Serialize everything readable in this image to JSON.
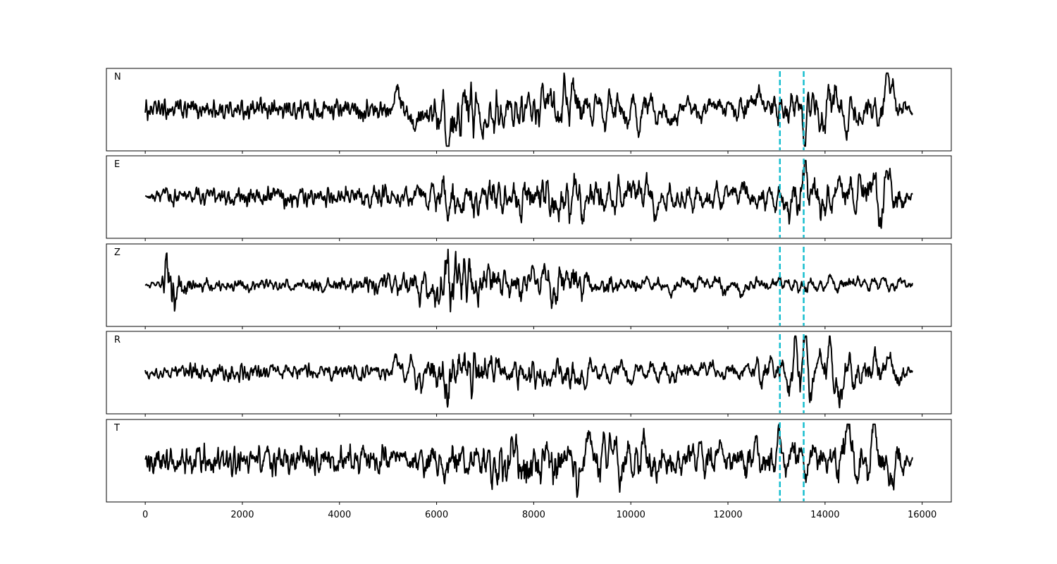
{
  "chart_data": {
    "type": "line",
    "title": "",
    "xlabel": "",
    "ylabel": "",
    "xlim": [
      -800,
      16600
    ],
    "x_ticks": [
      0,
      2000,
      4000,
      6000,
      8000,
      10000,
      12000,
      14000,
      16000
    ],
    "x_tick_labels": [
      "0",
      "2000",
      "4000",
      "6000",
      "8000",
      "10000",
      "12000",
      "14000",
      "16000"
    ],
    "x_range": [
      0,
      15800
    ],
    "grid": false,
    "trace_color": "#000000",
    "pick_color": "#17becf",
    "picks": [
      13070,
      13560
    ],
    "panels": [
      {
        "label": "N",
        "envelope": [
          [
            0,
            0.16
          ],
          [
            1000,
            0.18
          ],
          [
            2000,
            0.16
          ],
          [
            3000,
            0.18
          ],
          [
            4000,
            0.16
          ],
          [
            5000,
            0.18
          ],
          [
            5200,
            0.35
          ],
          [
            6000,
            0.4
          ],
          [
            6200,
            0.7
          ],
          [
            7000,
            0.45
          ],
          [
            8000,
            0.4
          ],
          [
            9000,
            0.5
          ],
          [
            10000,
            0.42
          ],
          [
            11000,
            0.4
          ],
          [
            12000,
            0.35
          ],
          [
            13000,
            0.45
          ],
          [
            13400,
            0.65
          ],
          [
            13800,
            0.6
          ],
          [
            14200,
            0.6
          ],
          [
            15000,
            0.45
          ],
          [
            15400,
            0.55
          ],
          [
            15800,
            0.2
          ]
        ],
        "spikes": [
          [
            6220,
            -0.92
          ],
          [
            5180,
            0.55
          ],
          [
            13380,
            0.72
          ],
          [
            14080,
            0.7
          ],
          [
            15300,
            0.68
          ],
          [
            10150,
            -0.62
          ],
          [
            8650,
            0.55
          ],
          [
            13550,
            -0.62
          ],
          [
            14650,
            -0.55
          ]
        ]
      },
      {
        "label": "E",
        "envelope": [
          [
            0,
            0.05
          ],
          [
            500,
            0.16
          ],
          [
            1000,
            0.14
          ],
          [
            2000,
            0.18
          ],
          [
            3000,
            0.16
          ],
          [
            4000,
            0.14
          ],
          [
            5000,
            0.2
          ],
          [
            6000,
            0.35
          ],
          [
            6200,
            0.55
          ],
          [
            7000,
            0.45
          ],
          [
            8000,
            0.45
          ],
          [
            9000,
            0.55
          ],
          [
            10000,
            0.52
          ],
          [
            11000,
            0.45
          ],
          [
            12000,
            0.38
          ],
          [
            13000,
            0.42
          ],
          [
            13600,
            0.72
          ],
          [
            14200,
            0.55
          ],
          [
            15000,
            0.6
          ],
          [
            15300,
            0.65
          ],
          [
            15800,
            0.25
          ]
        ],
        "spikes": [
          [
            13600,
            0.82
          ],
          [
            15150,
            -0.85
          ],
          [
            15000,
            0.68
          ],
          [
            10500,
            -0.7
          ],
          [
            6220,
            -0.6
          ],
          [
            9000,
            -0.52
          ],
          [
            15300,
            0.75
          ]
        ]
      },
      {
        "label": "Z",
        "envelope": [
          [
            0,
            0.02
          ],
          [
            300,
            0.08
          ],
          [
            450,
            0.35
          ],
          [
            700,
            0.28
          ],
          [
            1000,
            0.12
          ],
          [
            2000,
            0.1
          ],
          [
            3000,
            0.1
          ],
          [
            4000,
            0.12
          ],
          [
            5000,
            0.2
          ],
          [
            5500,
            0.4
          ],
          [
            6000,
            0.55
          ],
          [
            6200,
            0.75
          ],
          [
            7000,
            0.4
          ],
          [
            8000,
            0.35
          ],
          [
            8700,
            0.55
          ],
          [
            9000,
            0.4
          ],
          [
            10000,
            0.25
          ],
          [
            11000,
            0.25
          ],
          [
            12000,
            0.28
          ],
          [
            13000,
            0.25
          ],
          [
            14000,
            0.25
          ],
          [
            15000,
            0.22
          ],
          [
            15800,
            0.18
          ]
        ],
        "spikes": [
          [
            6220,
            0.78
          ],
          [
            5650,
            -0.85
          ],
          [
            8700,
            0.72
          ],
          [
            600,
            -0.5
          ],
          [
            440,
            0.45
          ]
        ]
      },
      {
        "label": "R",
        "envelope": [
          [
            0,
            0.08
          ],
          [
            1000,
            0.14
          ],
          [
            2000,
            0.14
          ],
          [
            3000,
            0.14
          ],
          [
            4000,
            0.14
          ],
          [
            5000,
            0.16
          ],
          [
            5200,
            0.3
          ],
          [
            6000,
            0.4
          ],
          [
            6200,
            0.65
          ],
          [
            7000,
            0.4
          ],
          [
            8000,
            0.35
          ],
          [
            9000,
            0.38
          ],
          [
            10000,
            0.3
          ],
          [
            11000,
            0.3
          ],
          [
            12000,
            0.25
          ],
          [
            13000,
            0.4
          ],
          [
            13400,
            0.72
          ],
          [
            13600,
            0.75
          ],
          [
            14200,
            0.65
          ],
          [
            15000,
            0.45
          ],
          [
            15300,
            0.65
          ],
          [
            15800,
            0.15
          ]
        ],
        "spikes": [
          [
            6220,
            -0.92
          ],
          [
            13380,
            0.78
          ],
          [
            13600,
            0.8
          ],
          [
            14100,
            0.72
          ],
          [
            15300,
            0.68
          ],
          [
            14300,
            -0.62
          ],
          [
            5150,
            0.48
          ]
        ]
      },
      {
        "label": "T",
        "envelope": [
          [
            0,
            0.2
          ],
          [
            1000,
            0.25
          ],
          [
            2000,
            0.22
          ],
          [
            3000,
            0.25
          ],
          [
            4000,
            0.22
          ],
          [
            5000,
            0.25
          ],
          [
            6000,
            0.38
          ],
          [
            7000,
            0.4
          ],
          [
            7800,
            0.7
          ],
          [
            8000,
            0.5
          ],
          [
            9000,
            0.55
          ],
          [
            10000,
            0.6
          ],
          [
            11000,
            0.55
          ],
          [
            12000,
            0.4
          ],
          [
            13000,
            0.55
          ],
          [
            13500,
            0.5
          ],
          [
            14000,
            0.55
          ],
          [
            14500,
            0.72
          ],
          [
            15000,
            0.6
          ],
          [
            15400,
            0.6
          ],
          [
            15800,
            0.2
          ]
        ],
        "spikes": [
          [
            7850,
            -0.92
          ],
          [
            10100,
            0.78
          ],
          [
            14450,
            0.78
          ],
          [
            15000,
            0.72
          ],
          [
            15400,
            -0.8
          ],
          [
            13600,
            -0.72
          ],
          [
            13050,
            0.62
          ]
        ]
      }
    ]
  }
}
